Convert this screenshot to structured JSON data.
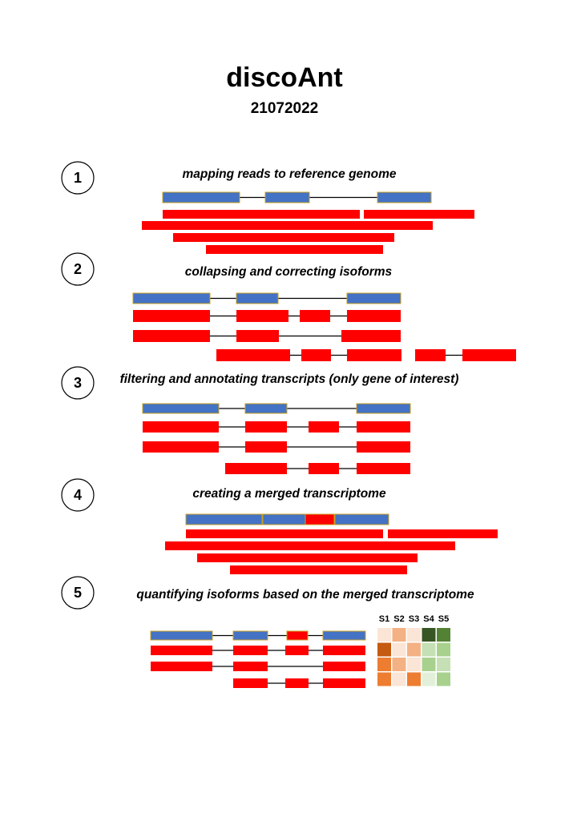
{
  "title": "discoAnt",
  "date": "21072022",
  "colors": {
    "exon_ref": "#4472C4",
    "exon_ref_border": "#C8A020",
    "read": "#FF0000",
    "intron": "#000000"
  },
  "steps": [
    {
      "number": "1",
      "label": "mapping reads to reference genome"
    },
    {
      "number": "2",
      "label": "collapsing and correcting isoforms"
    },
    {
      "number": "3",
      "label": "filtering and annotating transcripts (only gene of interest)"
    },
    {
      "number": "4",
      "label": "creating a merged transcriptome"
    },
    {
      "number": "5",
      "label": "quantifying isoforms based on the merged transcriptome"
    }
  ],
  "heatmap": {
    "samples": [
      "S1",
      "S2",
      "S3",
      "S4",
      "S5"
    ],
    "rows": [
      [
        "#FBE5D6",
        "#F4B183",
        "#FBE5D6",
        "#375623",
        "#548235"
      ],
      [
        "#C55A11",
        "#FBE5D6",
        "#F4B183",
        "#C5E0B4",
        "#A9D18E"
      ],
      [
        "#ED7D31",
        "#F4B183",
        "#FBE5D6",
        "#A9D18E",
        "#C5E0B4"
      ],
      [
        "#ED7D31",
        "#FBE5D6",
        "#ED7D31",
        "#E2F0D9",
        "#A9D18E"
      ]
    ]
  }
}
